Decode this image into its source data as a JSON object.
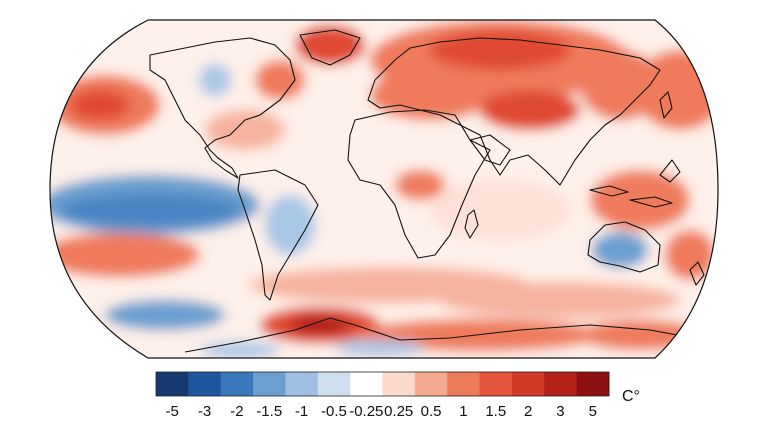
{
  "map": {
    "palette": {
      "deep_blue": "#163a70",
      "blue": "#2f6aac",
      "mid_blue": "#6b9fd0",
      "light_blue": "#a8c6e6",
      "pale_blue": "#d4e3f3",
      "white": "#ffffff",
      "pale_red": "#fde0d6",
      "light_red": "#f6b39f",
      "red": "#ef7a5c",
      "strong_red": "#e04a30",
      "dark_red": "#b5221a",
      "darkest_red": "#8c0f12",
      "coastline": "#111111"
    }
  },
  "legend": {
    "unit": "C°",
    "colors": [
      "#163a70",
      "#1f56a0",
      "#3a78bd",
      "#6b9fd0",
      "#9fbfe0",
      "#cfdff0",
      "#ffffff",
      "#fbd9cb",
      "#f5a98f",
      "#ec7a5b",
      "#e3553a",
      "#d03a26",
      "#b5221a",
      "#8c0f12"
    ],
    "labels": [
      "-5",
      "-3",
      "-2",
      "-1.5",
      "-1",
      "-0.5",
      "-0.25",
      "0.25",
      "0.5",
      "1",
      "1.5",
      "2",
      "3",
      "5"
    ]
  }
}
